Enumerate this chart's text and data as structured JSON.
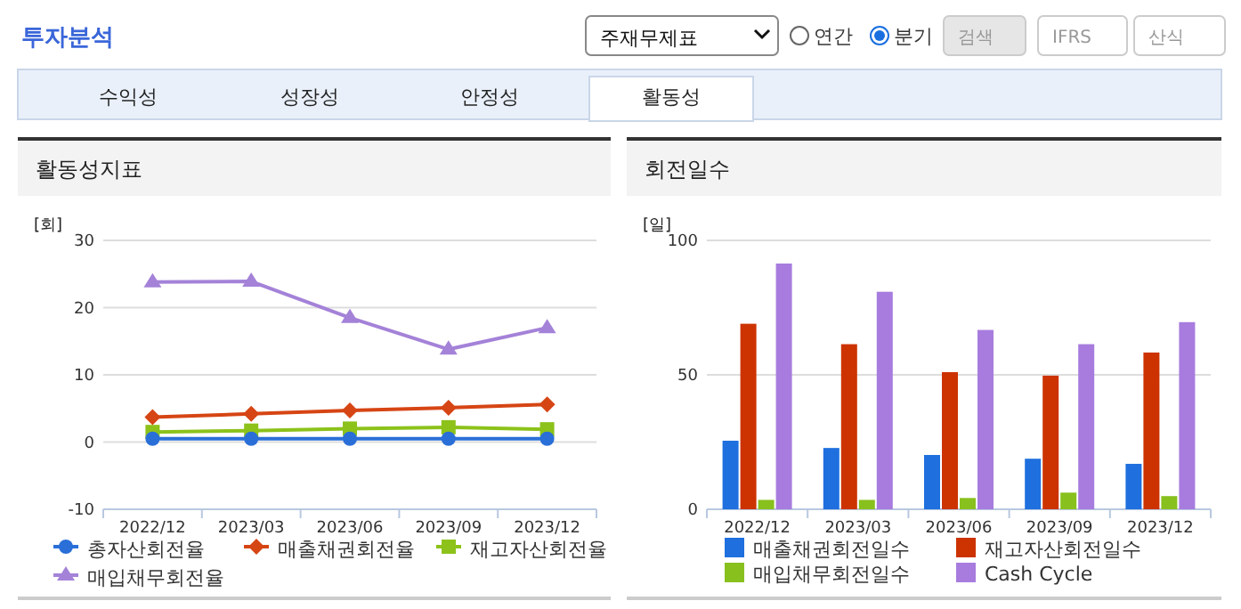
{
  "chart_data": [
    {
      "type": "line",
      "title": "활동성지표",
      "ylabel": "[회]",
      "categories": [
        "2022/12",
        "2023/03",
        "2023/06",
        "2023/09",
        "2023/12"
      ],
      "ylim": [
        -10,
        30
      ],
      "yticks": [
        -10,
        0,
        10,
        20,
        30
      ],
      "grid": "y",
      "legend": "bottom",
      "annotations": [
        "투자분석",
        "주재무제표",
        "연간",
        "분기",
        "검색",
        "IFRS",
        "산식",
        "수익성",
        "성장성",
        "안정성",
        "활동성"
      ],
      "series": [
        {
          "name": "총자산회전율",
          "color": "#2a6fd8",
          "marker": "circle",
          "values": [
            0.5,
            0.5,
            0.5,
            0.5,
            0.5
          ]
        },
        {
          "name": "매출채권회전율",
          "color": "#d64514",
          "marker": "diamond",
          "values": [
            3.7,
            4.2,
            4.7,
            5.1,
            5.6
          ]
        },
        {
          "name": "재고자산회전율",
          "color": "#8cc21a",
          "marker": "square",
          "values": [
            1.5,
            1.7,
            2.0,
            2.2,
            1.9
          ]
        },
        {
          "name": "매입채무회전율",
          "color": "#a482d8",
          "marker": "triangle",
          "values": [
            23.8,
            23.9,
            18.5,
            13.8,
            17.0
          ]
        }
      ]
    },
    {
      "type": "bar",
      "title": "회전일수",
      "ylabel": "[일]",
      "categories": [
        "2022/12",
        "2023/03",
        "2023/06",
        "2023/09",
        "2023/12"
      ],
      "ylim": [
        0,
        100
      ],
      "yticks": [
        0,
        50,
        100
      ],
      "grid": "y",
      "legend": "bottom",
      "series": [
        {
          "name": "매출채권회전일수",
          "color": "#1f6fde",
          "values": [
            25.5,
            22.8,
            20.2,
            18.8,
            16.9
          ]
        },
        {
          "name": "재고자산회전일수",
          "color": "#cc3300",
          "values": [
            69,
            61.4,
            51,
            49.7,
            58.3
          ]
        },
        {
          "name": "매입채무회전일수",
          "color": "#88c01e",
          "values": [
            3.5,
            3.5,
            4.2,
            6.2,
            4.9
          ]
        },
        {
          "name": "Cash Cycle",
          "color": "#a77cde",
          "values": [
            91.4,
            80.9,
            66.7,
            61.4,
            69.6
          ]
        }
      ]
    }
  ]
}
